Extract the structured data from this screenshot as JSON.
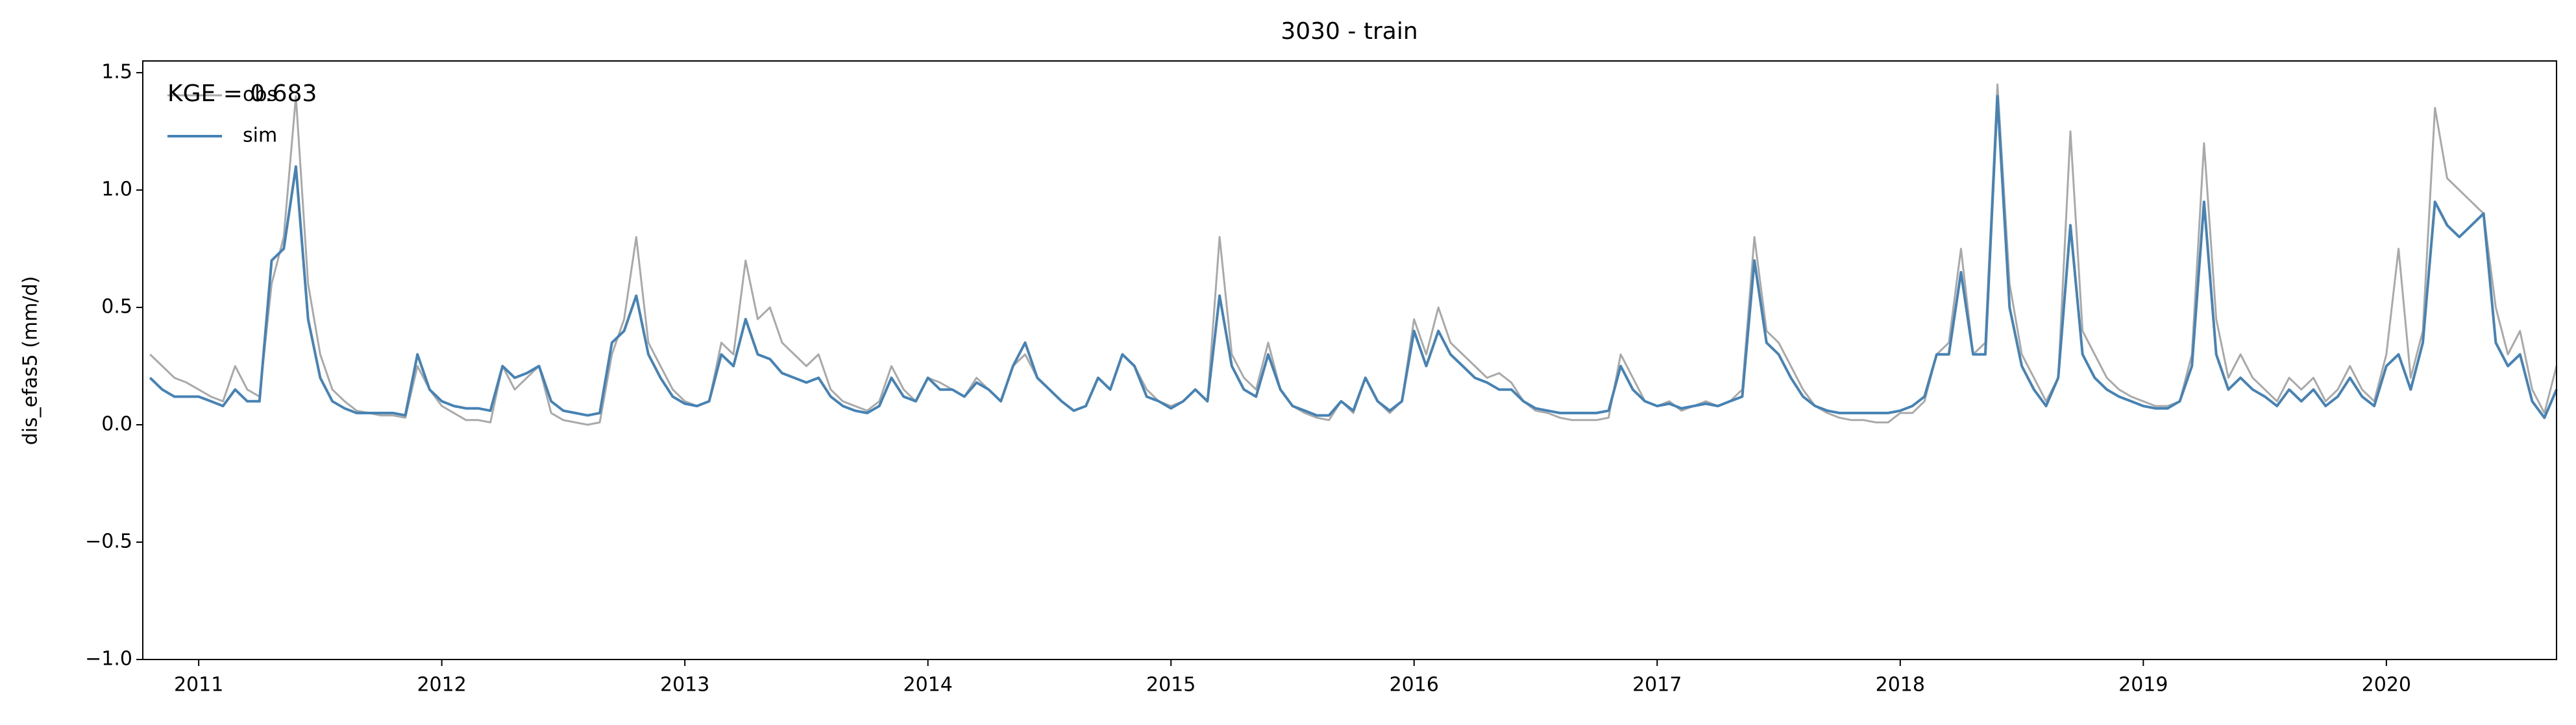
{
  "chart_data": {
    "type": "line",
    "title": "3030 - train",
    "ylabel": "dis_efas5 (mm/d)",
    "annotation": "KGE = 0.683",
    "legend": "upper left",
    "xlim": [
      2010.77,
      2020.7
    ],
    "xticks": [
      2011,
      2012,
      2013,
      2014,
      2015,
      2016,
      2017,
      2018,
      2019,
      2020
    ],
    "ylim": [
      -1,
      1.55
    ],
    "yticks": [
      {
        "value": -1,
        "label": "−1.0"
      },
      {
        "value": -0.5,
        "label": "−0.5"
      },
      {
        "value": 0,
        "label": "0.0"
      },
      0.5,
      {
        "value": 1,
        "label": "1.0"
      },
      1.5
    ],
    "x": [
      2010.8,
      2010.85,
      2010.9,
      2010.95,
      2011,
      2011.05,
      2011.1,
      2011.15,
      2011.2,
      2011.25,
      2011.3,
      2011.35,
      2011.4,
      2011.45,
      2011.5,
      2011.55,
      2011.6,
      2011.65,
      2011.7,
      2011.75,
      2011.8,
      2011.85,
      2011.9,
      2011.95,
      2012,
      2012.05,
      2012.1,
      2012.15,
      2012.2,
      2012.25,
      2012.3,
      2012.35,
      2012.4,
      2012.45,
      2012.5,
      2012.55,
      2012.6,
      2012.65,
      2012.7,
      2012.75,
      2012.8,
      2012.85,
      2012.9,
      2012.95,
      2013,
      2013.05,
      2013.1,
      2013.15,
      2013.2,
      2013.25,
      2013.3,
      2013.35,
      2013.4,
      2013.45,
      2013.5,
      2013.55,
      2013.6,
      2013.65,
      2013.7,
      2013.75,
      2013.8,
      2013.85,
      2013.9,
      2013.95,
      2014,
      2014.05,
      2014.1,
      2014.15,
      2014.2,
      2014.25,
      2014.3,
      2014.35,
      2014.4,
      2014.45,
      2014.5,
      2014.55,
      2014.6,
      2014.65,
      2014.7,
      2014.75,
      2014.8,
      2014.85,
      2014.9,
      2014.95,
      2015,
      2015.05,
      2015.1,
      2015.15,
      2015.2,
      2015.25,
      2015.3,
      2015.35,
      2015.4,
      2015.45,
      2015.5,
      2015.55,
      2015.6,
      2015.65,
      2015.7,
      2015.75,
      2015.8,
      2015.85,
      2015.9,
      2015.95,
      2016,
      2016.05,
      2016.1,
      2016.15,
      2016.2,
      2016.25,
      2016.3,
      2016.35,
      2016.4,
      2016.45,
      2016.5,
      2016.55,
      2016.6,
      2016.65,
      2016.7,
      2016.75,
      2016.8,
      2016.85,
      2016.9,
      2016.95,
      2017,
      2017.05,
      2017.1,
      2017.15,
      2017.2,
      2017.25,
      2017.3,
      2017.35,
      2017.4,
      2017.45,
      2017.5,
      2017.55,
      2017.6,
      2017.65,
      2017.7,
      2017.75,
      2017.8,
      2017.85,
      2017.9,
      2017.95,
      2018,
      2018.05,
      2018.1,
      2018.15,
      2018.2,
      2018.25,
      2018.3,
      2018.35,
      2018.4,
      2018.45,
      2018.5,
      2018.55,
      2018.6,
      2018.65,
      2018.7,
      2018.75,
      2018.8,
      2018.85,
      2018.9,
      2018.95,
      2019,
      2019.05,
      2019.1,
      2019.15,
      2019.2,
      2019.25,
      2019.3,
      2019.35,
      2019.4,
      2019.45,
      2019.5,
      2019.55,
      2019.6,
      2019.65,
      2019.7,
      2019.75,
      2019.8,
      2019.85,
      2019.9,
      2019.95,
      2020,
      2020.05,
      2020.1,
      2020.15,
      2020.2,
      2020.25,
      2020.3,
      2020.35,
      2020.4,
      2020.45,
      2020.5,
      2020.55,
      2020.6,
      2020.65,
      2020.7
    ],
    "series": [
      {
        "name": "obs",
        "color": "#a9a9a9",
        "values": [
          0.3,
          0.25,
          0.2,
          0.18,
          0.15,
          0.12,
          0.1,
          0.25,
          0.15,
          0.12,
          0.6,
          0.8,
          1.4,
          0.6,
          0.3,
          0.15,
          0.1,
          0.06,
          0.05,
          0.04,
          0.04,
          0.03,
          0.25,
          0.15,
          0.08,
          0.05,
          0.02,
          0.02,
          0.01,
          0.25,
          0.15,
          0.2,
          0.25,
          0.05,
          0.02,
          0.01,
          0.0,
          0.01,
          0.3,
          0.45,
          0.8,
          0.35,
          0.25,
          0.15,
          0.1,
          0.08,
          0.1,
          0.35,
          0.3,
          0.7,
          0.45,
          0.5,
          0.35,
          0.3,
          0.25,
          0.3,
          0.15,
          0.1,
          0.08,
          0.06,
          0.1,
          0.25,
          0.15,
          0.1,
          0.2,
          0.18,
          0.15,
          0.12,
          0.2,
          0.15,
          0.1,
          0.25,
          0.3,
          0.2,
          0.15,
          0.1,
          0.06,
          0.08,
          0.2,
          0.15,
          0.3,
          0.25,
          0.15,
          0.1,
          0.08,
          0.1,
          0.15,
          0.1,
          0.8,
          0.3,
          0.2,
          0.15,
          0.35,
          0.15,
          0.08,
          0.05,
          0.03,
          0.02,
          0.1,
          0.05,
          0.2,
          0.1,
          0.05,
          0.1,
          0.45,
          0.3,
          0.5,
          0.35,
          0.3,
          0.25,
          0.2,
          0.22,
          0.18,
          0.1,
          0.06,
          0.05,
          0.03,
          0.02,
          0.02,
          0.02,
          0.03,
          0.3,
          0.2,
          0.1,
          0.08,
          0.1,
          0.06,
          0.08,
          0.1,
          0.08,
          0.1,
          0.15,
          0.8,
          0.4,
          0.35,
          0.25,
          0.15,
          0.08,
          0.05,
          0.03,
          0.02,
          0.02,
          0.01,
          0.01,
          0.05,
          0.05,
          0.1,
          0.3,
          0.35,
          0.75,
          0.3,
          0.35,
          1.45,
          0.6,
          0.3,
          0.2,
          0.1,
          0.2,
          1.25,
          0.4,
          0.3,
          0.2,
          0.15,
          0.12,
          0.1,
          0.08,
          0.08,
          0.1,
          0.3,
          1.2,
          0.45,
          0.2,
          0.3,
          0.2,
          0.15,
          0.1,
          0.2,
          0.15,
          0.2,
          0.1,
          0.15,
          0.25,
          0.15,
          0.1,
          0.3,
          0.75,
          0.2,
          0.4,
          1.35,
          1.05,
          1.0,
          0.95,
          0.9,
          0.5,
          0.3,
          0.4,
          0.15,
          0.05,
          0.25
        ]
      },
      {
        "name": "sim",
        "color": "#4682b4",
        "values": [
          0.2,
          0.15,
          0.12,
          0.12,
          0.12,
          0.1,
          0.08,
          0.15,
          0.1,
          0.1,
          0.7,
          0.75,
          1.1,
          0.45,
          0.2,
          0.1,
          0.07,
          0.05,
          0.05,
          0.05,
          0.05,
          0.04,
          0.3,
          0.15,
          0.1,
          0.08,
          0.07,
          0.07,
          0.06,
          0.25,
          0.2,
          0.22,
          0.25,
          0.1,
          0.06,
          0.05,
          0.04,
          0.05,
          0.35,
          0.4,
          0.55,
          0.3,
          0.2,
          0.12,
          0.09,
          0.08,
          0.1,
          0.3,
          0.25,
          0.45,
          0.3,
          0.28,
          0.22,
          0.2,
          0.18,
          0.2,
          0.12,
          0.08,
          0.06,
          0.05,
          0.08,
          0.2,
          0.12,
          0.1,
          0.2,
          0.15,
          0.15,
          0.12,
          0.18,
          0.15,
          0.1,
          0.25,
          0.35,
          0.2,
          0.15,
          0.1,
          0.06,
          0.08,
          0.2,
          0.15,
          0.3,
          0.25,
          0.12,
          0.1,
          0.07,
          0.1,
          0.15,
          0.1,
          0.55,
          0.25,
          0.15,
          0.12,
          0.3,
          0.15,
          0.08,
          0.06,
          0.04,
          0.04,
          0.1,
          0.06,
          0.2,
          0.1,
          0.06,
          0.1,
          0.4,
          0.25,
          0.4,
          0.3,
          0.25,
          0.2,
          0.18,
          0.15,
          0.15,
          0.1,
          0.07,
          0.06,
          0.05,
          0.05,
          0.05,
          0.05,
          0.06,
          0.25,
          0.15,
          0.1,
          0.08,
          0.09,
          0.07,
          0.08,
          0.09,
          0.08,
          0.1,
          0.12,
          0.7,
          0.35,
          0.3,
          0.2,
          0.12,
          0.08,
          0.06,
          0.05,
          0.05,
          0.05,
          0.05,
          0.05,
          0.06,
          0.08,
          0.12,
          0.3,
          0.3,
          0.65,
          0.3,
          0.3,
          1.4,
          0.5,
          0.25,
          0.15,
          0.08,
          0.2,
          0.85,
          0.3,
          0.2,
          0.15,
          0.12,
          0.1,
          0.08,
          0.07,
          0.07,
          0.1,
          0.25,
          0.95,
          0.3,
          0.15,
          0.2,
          0.15,
          0.12,
          0.08,
          0.15,
          0.1,
          0.15,
          0.08,
          0.12,
          0.2,
          0.12,
          0.08,
          0.25,
          0.3,
          0.15,
          0.35,
          0.95,
          0.85,
          0.8,
          0.85,
          0.9,
          0.35,
          0.25,
          0.3,
          0.1,
          0.03,
          0.15
        ]
      }
    ]
  }
}
